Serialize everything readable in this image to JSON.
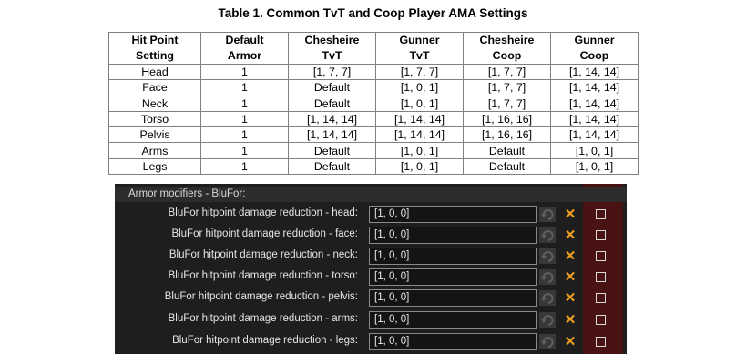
{
  "title": "Table 1. Common TvT and Coop Player AMA Settings",
  "table": {
    "headers": [
      [
        "Hit Point",
        "Setting"
      ],
      [
        "Default",
        "Armor"
      ],
      [
        "Chesheire",
        "TvT"
      ],
      [
        "Gunner",
        "TvT"
      ],
      [
        "Chesheire",
        "Coop"
      ],
      [
        "Gunner",
        "Coop"
      ]
    ],
    "rows": [
      [
        "Head",
        "1",
        "[1, 7, 7]",
        "[1, 7, 7]",
        "[1, 7, 7]",
        "[1, 14, 14]"
      ],
      [
        "Face",
        "1",
        "Default",
        "[1, 0, 1]",
        "[1, 7, 7]",
        "[1, 14, 14]"
      ],
      [
        "Neck",
        "1",
        "Default",
        "[1, 0, 1]",
        "[1, 7, 7]",
        "[1, 14, 14]"
      ],
      [
        "Torso",
        "1",
        "[1, 14, 14]",
        "[1, 14, 14]",
        "[1, 16, 16]",
        "[1, 14, 14]"
      ],
      [
        "Pelvis",
        "1",
        "[1, 14, 14]",
        "[1, 14, 14]",
        "[1, 16, 16]",
        "[1, 14, 14]"
      ],
      [
        "Arms",
        "1",
        "Default",
        "[1, 0, 1]",
        "Default",
        "[1, 0, 1]"
      ],
      [
        "Legs",
        "1",
        "Default",
        "[1, 0, 1]",
        "Default",
        "[1, 0, 1]"
      ]
    ]
  },
  "panel": {
    "title": "Armor modifiers - BluFor:",
    "rows": [
      {
        "label": "BluFor hitpoint damage reduction - head:",
        "value": "[1, 0, 0]"
      },
      {
        "label": "BluFor hitpoint damage reduction - face:",
        "value": "[1, 0, 0]"
      },
      {
        "label": "BluFor hitpoint damage reduction - neck:",
        "value": "[1, 0, 0]"
      },
      {
        "label": "BluFor hitpoint damage reduction - torso:",
        "value": "[1, 0, 0]"
      },
      {
        "label": "BluFor hitpoint damage reduction - pelvis:",
        "value": "[1, 0, 0]"
      },
      {
        "label": "BluFor hitpoint damage reduction - arms:",
        "value": "[1, 0, 0]"
      },
      {
        "label": "BluFor hitpoint damage reduction - legs:",
        "value": "[1, 0, 0]"
      }
    ],
    "icons": {
      "reset": "reset-icon",
      "clear": "clear-x-icon",
      "checkbox": "checkbox-icon"
    },
    "colors": {
      "accent": "#f0a020",
      "highlight": "#4a1313",
      "background": "#1e1e1e"
    }
  }
}
